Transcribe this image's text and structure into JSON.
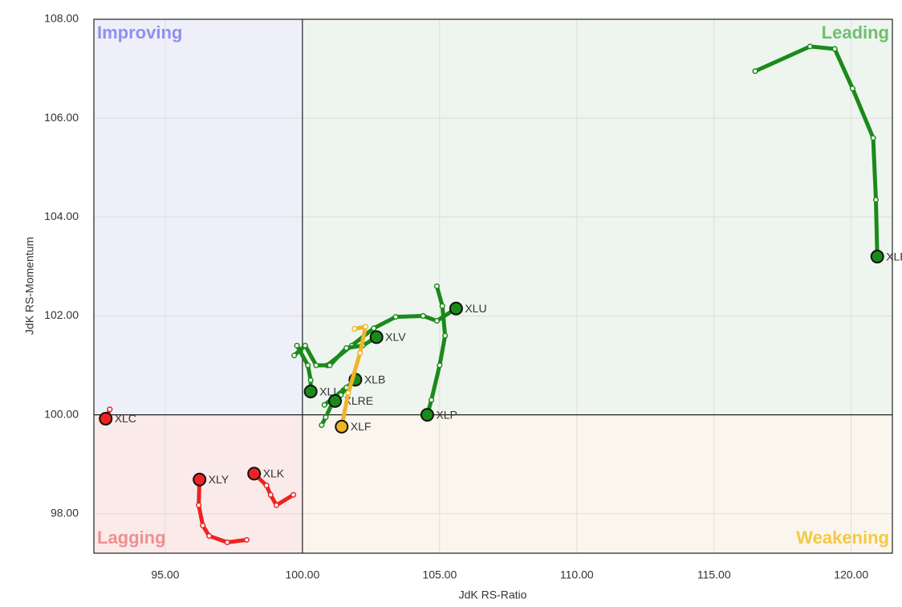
{
  "chart_data": {
    "type": "rrg",
    "xlabel": "JdK RS-Ratio",
    "ylabel": "JdK RS-Momentum",
    "xlim": [
      92.4,
      121.5
    ],
    "ylim": [
      97.2,
      108
    ],
    "xticks": [
      {
        "value": 95,
        "label": "95.00"
      },
      {
        "value": 100,
        "label": "100.00"
      },
      {
        "value": 105,
        "label": "105.00"
      },
      {
        "value": 110,
        "label": "110.00"
      },
      {
        "value": 115,
        "label": "115.00"
      },
      {
        "value": 120,
        "label": "120.00"
      }
    ],
    "yticks": [
      {
        "value": 98,
        "label": "98.00"
      },
      {
        "value": 100,
        "label": "100.00"
      },
      {
        "value": 102,
        "label": "102.00"
      },
      {
        "value": 104,
        "label": "104.00"
      },
      {
        "value": 106,
        "label": "106.00"
      },
      {
        "value": 108,
        "label": "108.00"
      }
    ],
    "grid": true,
    "x_center": 100,
    "y_center": 100,
    "quadrants": [
      {
        "label": "Improving",
        "position": "top-left",
        "color": "#8f8ff0",
        "fill": "#efeffa"
      },
      {
        "label": "Leading",
        "position": "top-right",
        "color": "#6fbf6f",
        "fill": "#eef5ee"
      },
      {
        "label": "Lagging",
        "position": "bottom-left",
        "color": "#f08f8f",
        "fill": "#fbeaea"
      },
      {
        "label": "Weakening",
        "position": "bottom-right",
        "color": "#f5c842",
        "fill": "#faf6ee"
      }
    ],
    "series": [
      {
        "name": "XLE",
        "color": "#1a8a1a",
        "x": [
          116.5,
          118.5,
          119.4,
          120.05,
          120.8,
          120.9,
          120.95
        ],
        "y": [
          106.95,
          107.45,
          107.4,
          106.6,
          105.6,
          104.35,
          103.2
        ]
      },
      {
        "name": "XLU",
        "color": "#1a8a1a",
        "x": [
          100.9,
          101.8,
          102.6,
          103.4,
          104.4,
          104.9,
          105.6
        ],
        "y": [
          101.0,
          101.4,
          101.75,
          101.98,
          102.0,
          101.9,
          102.15
        ]
      },
      {
        "name": "XLP",
        "color": "#1a8a1a",
        "x": [
          104.9,
          105.1,
          105.2,
          105.0,
          104.7,
          104.55
        ],
        "y": [
          102.6,
          102.2,
          101.6,
          101.0,
          100.3,
          100.0
        ]
      },
      {
        "name": "XLV",
        "color": "#1a8a1a",
        "x": [
          99.7,
          100.1,
          100.5,
          101.0,
          101.6,
          102.2,
          102.7
        ],
        "y": [
          101.2,
          101.4,
          101.0,
          101.0,
          101.35,
          101.4,
          101.57
        ]
      },
      {
        "name": "XLI",
        "color": "#1a8a1a",
        "x": [
          99.8,
          100.2,
          100.3,
          100.3
        ],
        "y": [
          101.4,
          101.0,
          100.7,
          100.47
        ]
      },
      {
        "name": "XLB",
        "color": "#1a8a1a",
        "x": [
          100.7,
          100.85,
          101.1,
          101.5,
          101.93
        ],
        "y": [
          99.79,
          99.95,
          100.25,
          100.5,
          100.71
        ]
      },
      {
        "name": "XLRE",
        "color": "#1a8a1a",
        "x": [
          100.8,
          101.6,
          101.4,
          101.19
        ],
        "y": [
          100.2,
          100.55,
          100.4,
          100.28
        ]
      },
      {
        "name": "XLF",
        "color": "#f0b429",
        "x": [
          101.9,
          102.3,
          102.1,
          101.67,
          101.43
        ],
        "y": [
          101.74,
          101.78,
          101.25,
          100.44,
          99.76
        ]
      },
      {
        "name": "XLC",
        "color": "#ee2222",
        "x": [
          92.98,
          92.9,
          92.83
        ],
        "y": [
          100.11,
          100.0,
          99.92
        ]
      },
      {
        "name": "XLY",
        "color": "#ee2222",
        "x": [
          97.97,
          97.26,
          96.6,
          96.37,
          96.22,
          96.25
        ],
        "y": [
          97.47,
          97.42,
          97.55,
          97.76,
          98.17,
          98.69
        ]
      },
      {
        "name": "XLK",
        "color": "#ee2222",
        "x": [
          99.67,
          99.05,
          98.84,
          98.69,
          98.24
        ],
        "y": [
          98.38,
          98.17,
          98.38,
          98.57,
          98.81
        ]
      }
    ]
  }
}
